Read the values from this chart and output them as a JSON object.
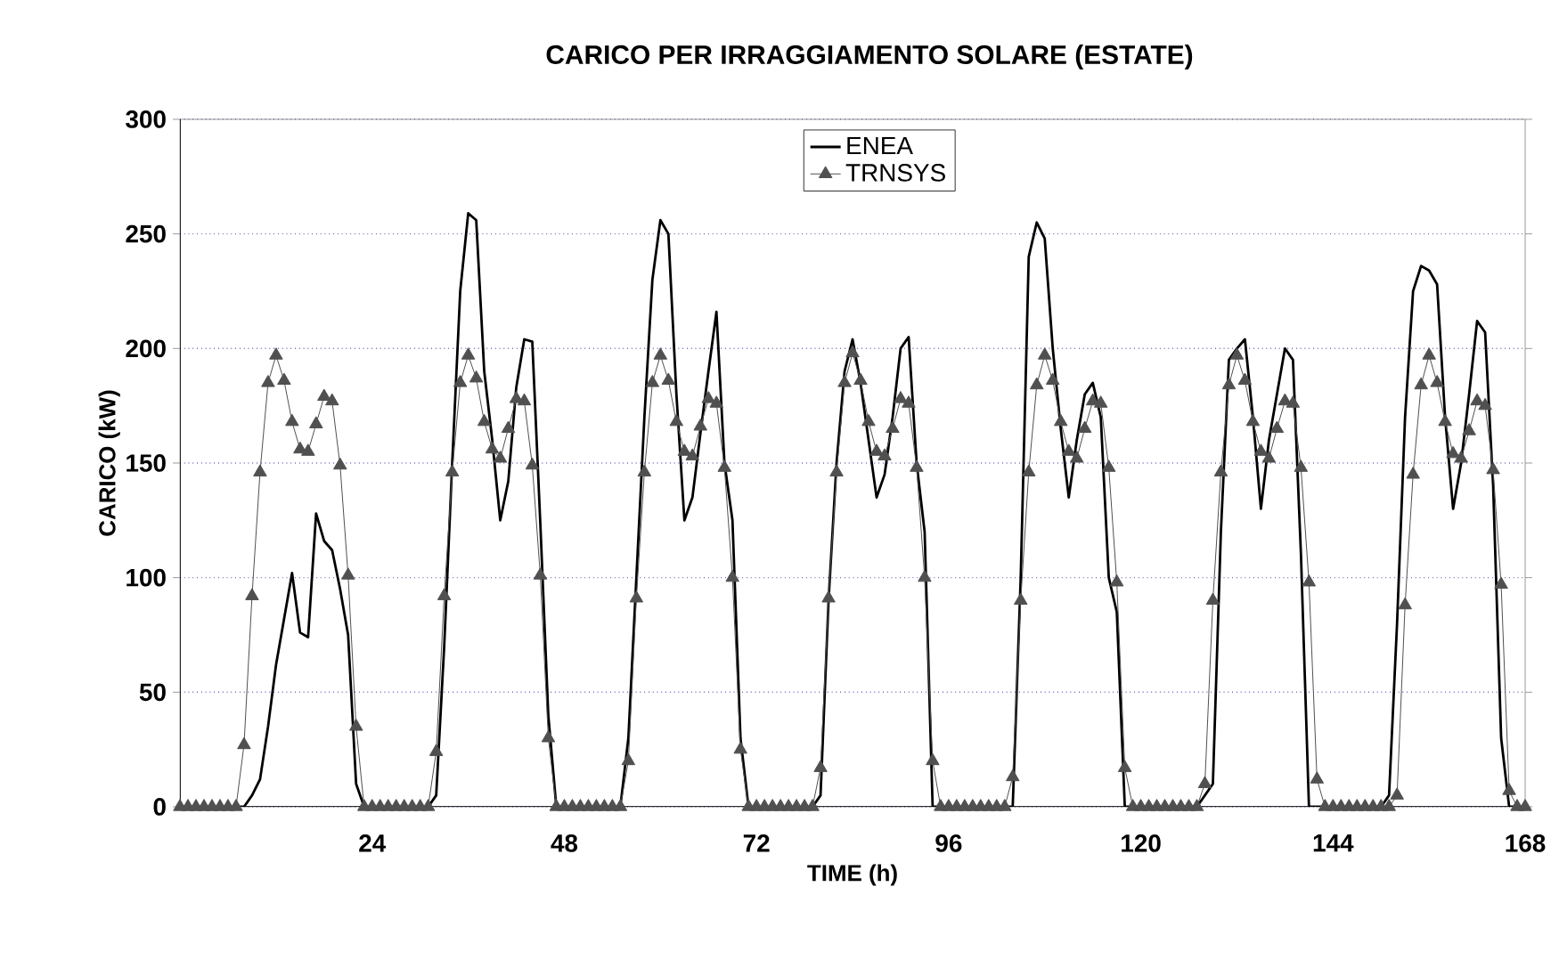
{
  "chart_data": {
    "type": "line",
    "title": "CARICO PER IRRAGGIAMENTO SOLARE (ESTATE)",
    "xlabel": "TIME (h)",
    "ylabel": "CARICO (kW)",
    "x": [
      0,
      1,
      2,
      3,
      4,
      5,
      6,
      7,
      8,
      9,
      10,
      11,
      12,
      13,
      14,
      15,
      16,
      17,
      18,
      19,
      20,
      21,
      22,
      23,
      24,
      25,
      26,
      27,
      28,
      29,
      30,
      31,
      32,
      33,
      34,
      35,
      36,
      37,
      38,
      39,
      40,
      41,
      42,
      43,
      44,
      45,
      46,
      47,
      48,
      49,
      50,
      51,
      52,
      53,
      54,
      55,
      56,
      57,
      58,
      59,
      60,
      61,
      62,
      63,
      64,
      65,
      66,
      67,
      68,
      69,
      70,
      71,
      72,
      73,
      74,
      75,
      76,
      77,
      78,
      79,
      80,
      81,
      82,
      83,
      84,
      85,
      86,
      87,
      88,
      89,
      90,
      91,
      92,
      93,
      94,
      95,
      96,
      97,
      98,
      99,
      100,
      101,
      102,
      103,
      104,
      105,
      106,
      107,
      108,
      109,
      110,
      111,
      112,
      113,
      114,
      115,
      116,
      117,
      118,
      119,
      120,
      121,
      122,
      123,
      124,
      125,
      126,
      127,
      128,
      129,
      130,
      131,
      132,
      133,
      134,
      135,
      136,
      137,
      138,
      139,
      140,
      141,
      142,
      143,
      144,
      145,
      146,
      147,
      148,
      149,
      150,
      151,
      152,
      153,
      154,
      155,
      156,
      157,
      158,
      159,
      160,
      161,
      162,
      163,
      164,
      165,
      166,
      167,
      168
    ],
    "series": [
      {
        "name": "ENEA",
        "color": "#000000",
        "marker": "none",
        "values": [
          0,
          0,
          0,
          0,
          0,
          0,
          0,
          0,
          0,
          5,
          12,
          35,
          62,
          82,
          102,
          76,
          74,
          128,
          116,
          112,
          95,
          75,
          10,
          0,
          0,
          0,
          0,
          0,
          0,
          0,
          0,
          0,
          5,
          70,
          150,
          225,
          259,
          256,
          190,
          160,
          125,
          142,
          183,
          204,
          203,
          124,
          40,
          0,
          0,
          0,
          0,
          0,
          0,
          0,
          0,
          0,
          30,
          100,
          170,
          230,
          256,
          250,
          180,
          125,
          135,
          163,
          190,
          216,
          150,
          125,
          30,
          0,
          0,
          0,
          0,
          0,
          0,
          0,
          0,
          0,
          5,
          90,
          150,
          190,
          204,
          185,
          160,
          135,
          145,
          170,
          200,
          205,
          150,
          120,
          0,
          0,
          0,
          0,
          0,
          0,
          0,
          0,
          0,
          0,
          0,
          100,
          240,
          255,
          248,
          200,
          165,
          135,
          160,
          180,
          185,
          170,
          100,
          85,
          0,
          0,
          0,
          0,
          0,
          0,
          0,
          0,
          0,
          0,
          5,
          10,
          120,
          195,
          200,
          204,
          170,
          130,
          160,
          180,
          200,
          195,
          110,
          0,
          0,
          0,
          0,
          0,
          0,
          0,
          0,
          0,
          0,
          5,
          80,
          170,
          225,
          236,
          234,
          228,
          170,
          130,
          150,
          180,
          212,
          207,
          140,
          30,
          0,
          0,
          0
        ]
      },
      {
        "name": "TRNSYS",
        "color": "#505050",
        "marker": "triangle",
        "values": [
          0,
          0,
          0,
          0,
          0,
          0,
          0,
          0,
          27,
          92,
          146,
          185,
          197,
          186,
          168,
          156,
          155,
          167,
          179,
          177,
          149,
          101,
          35,
          0,
          0,
          0,
          0,
          0,
          0,
          0,
          0,
          0,
          24,
          92,
          146,
          185,
          197,
          187,
          168,
          156,
          152,
          165,
          178,
          177,
          149,
          101,
          30,
          0,
          0,
          0,
          0,
          0,
          0,
          0,
          0,
          0,
          20,
          91,
          146,
          185,
          197,
          186,
          168,
          155,
          153,
          166,
          178,
          176,
          148,
          100,
          25,
          0,
          0,
          0,
          0,
          0,
          0,
          0,
          0,
          0,
          17,
          91,
          146,
          185,
          198,
          186,
          168,
          155,
          153,
          165,
          178,
          176,
          148,
          100,
          20,
          0,
          0,
          0,
          0,
          0,
          0,
          0,
          0,
          0,
          13,
          90,
          146,
          184,
          197,
          186,
          168,
          155,
          152,
          165,
          177,
          176,
          148,
          98,
          17,
          0,
          0,
          0,
          0,
          0,
          0,
          0,
          0,
          0,
          10,
          90,
          146,
          184,
          197,
          186,
          168,
          155,
          152,
          165,
          177,
          176,
          148,
          98,
          12,
          0,
          0,
          0,
          0,
          0,
          0,
          0,
          0,
          0,
          5,
          88,
          145,
          184,
          197,
          185,
          168,
          154,
          152,
          164,
          177,
          175,
          147,
          97,
          7,
          0,
          0
        ]
      }
    ],
    "xlim": [
      0,
      168
    ],
    "xticks": [
      24,
      48,
      72,
      96,
      120,
      144,
      168
    ],
    "ylim": [
      0,
      300
    ],
    "yticks": [
      0,
      50,
      100,
      150,
      200,
      250,
      300
    ],
    "grid": "y",
    "legend": "top"
  }
}
